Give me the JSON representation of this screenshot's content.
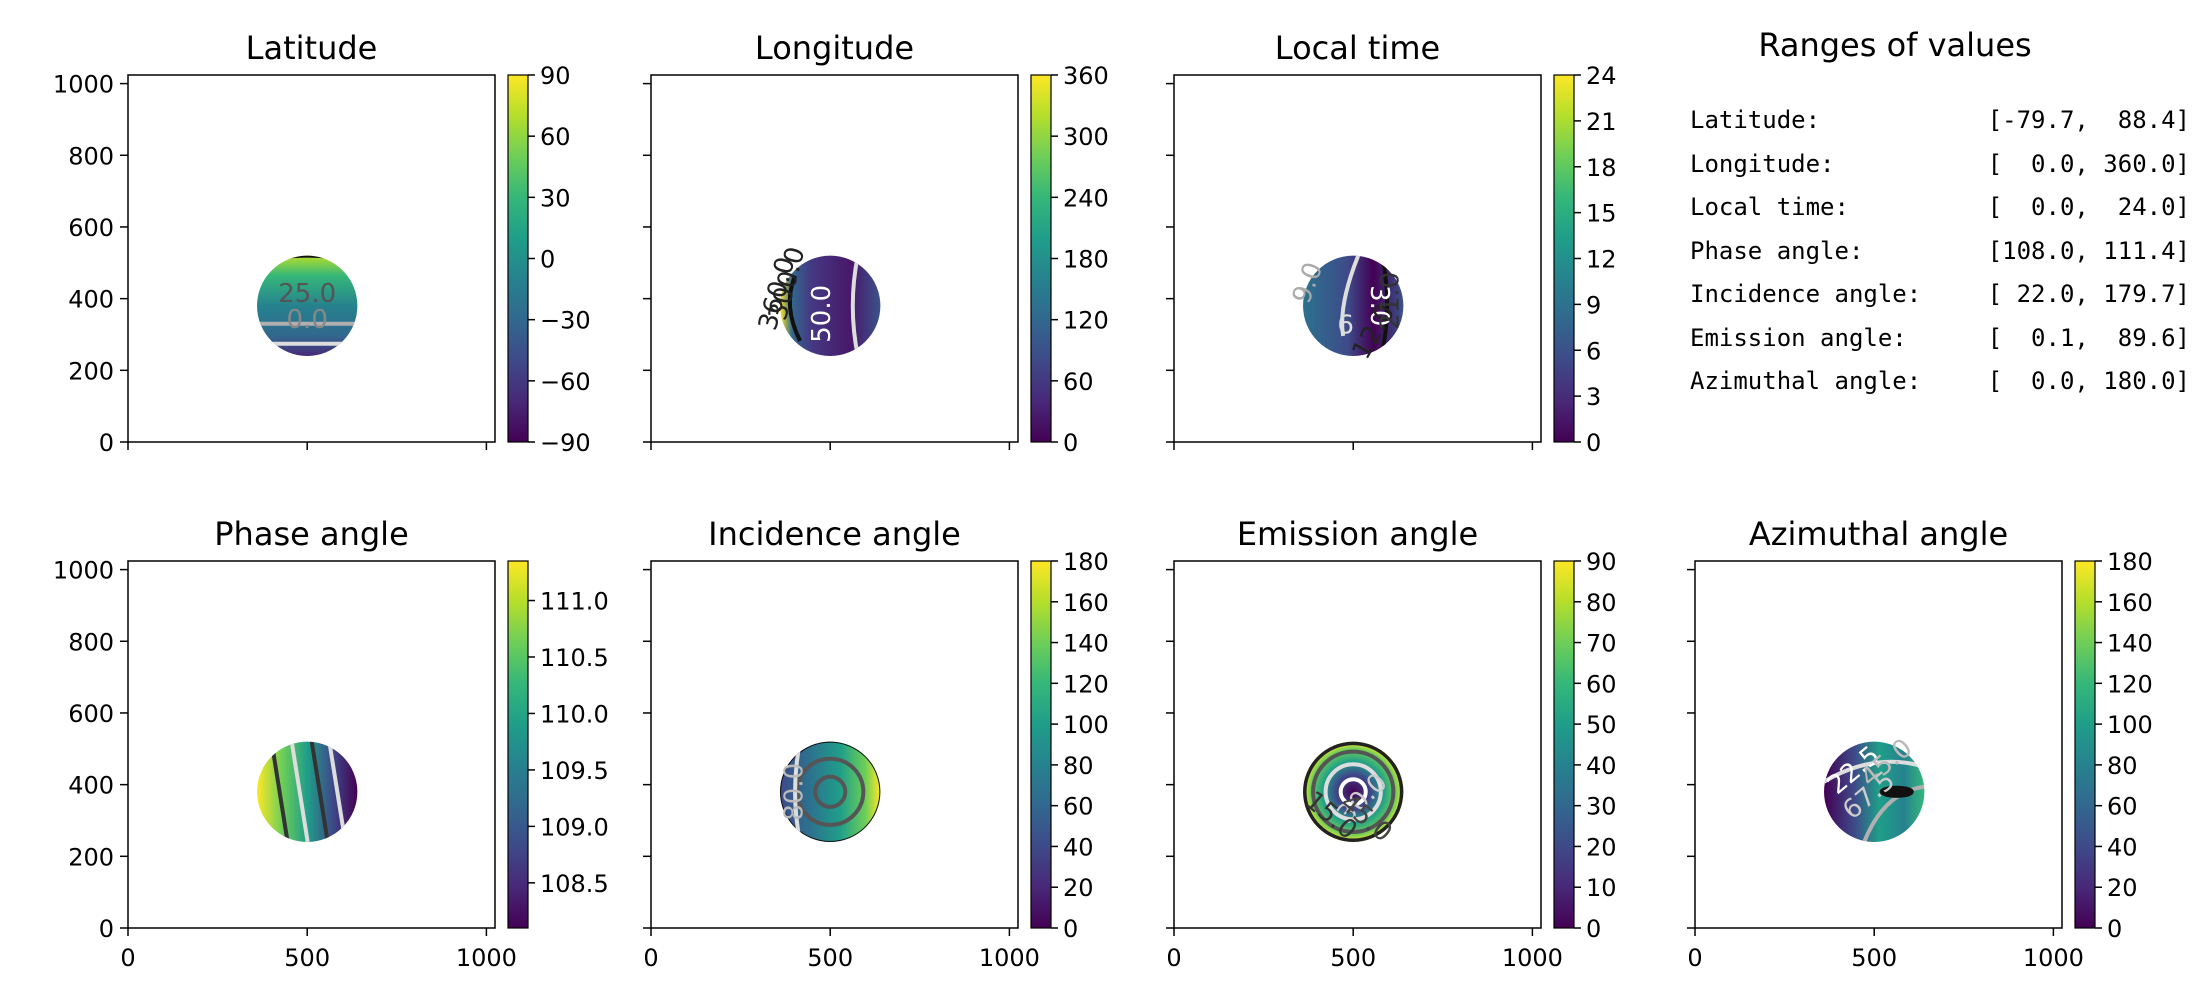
{
  "figure": {
    "axes": [
      {
        "key": "latitude",
        "title": "Latitude",
        "cb_min": -90,
        "cb_max": 90,
        "cb_ticks": [
          -90,
          -60,
          -30,
          0,
          30,
          60,
          90
        ],
        "cb_labels": [
          "−90",
          "−60",
          "−30",
          "0",
          "30",
          "60",
          "90"
        ],
        "contour_labels": [
          "25.0",
          "0.0"
        ]
      },
      {
        "key": "longitude",
        "title": "Longitude",
        "cb_min": 0,
        "cb_max": 360,
        "cb_ticks": [
          0,
          60,
          120,
          180,
          240,
          300,
          360
        ],
        "cb_labels": [
          "0",
          "60",
          "120",
          "180",
          "240",
          "300",
          "360"
        ],
        "contour_labels": [
          "50.0",
          "360.0",
          "300.0"
        ]
      },
      {
        "key": "local_time",
        "title": "Local time",
        "cb_min": 0,
        "cb_max": 24,
        "cb_ticks": [
          0,
          3,
          6,
          9,
          12,
          15,
          18,
          21,
          24
        ],
        "cb_labels": [
          "0",
          "3",
          "6",
          "9",
          "12",
          "15",
          "18",
          "21",
          "24"
        ],
        "contour_labels": [
          "9.0",
          "3.0",
          "6",
          "12.0",
          "21.0"
        ]
      },
      {
        "key": "phase_angle",
        "title": "Phase angle",
        "cb_min": 108.1,
        "cb_max": 111.35,
        "cb_ticks": [
          108.5,
          109.0,
          109.5,
          110.0,
          110.5,
          111.0
        ],
        "cb_labels": [
          "108.5",
          "109.0",
          "109.5",
          "110.0",
          "110.5",
          "111.0"
        ],
        "contour_labels": []
      },
      {
        "key": "incidence_angle",
        "title": "Incidence angle",
        "cb_min": 0,
        "cb_max": 180,
        "cb_ticks": [
          0,
          20,
          40,
          60,
          80,
          100,
          120,
          140,
          160,
          180
        ],
        "cb_labels": [
          "0",
          "20",
          "40",
          "60",
          "80",
          "100",
          "120",
          "140",
          "160",
          "180"
        ],
        "contour_labels": [
          "80.0"
        ]
      },
      {
        "key": "emission_angle",
        "title": "Emission angle",
        "cb_min": 0,
        "cb_max": 90,
        "cb_ticks": [
          0,
          10,
          20,
          30,
          40,
          50,
          60,
          70,
          80,
          90
        ],
        "cb_labels": [
          "0",
          "10",
          "20",
          "30",
          "40",
          "50",
          "60",
          "70",
          "80",
          "90"
        ],
        "contour_labels": [
          "30.0",
          "15.0",
          "45.0"
        ]
      },
      {
        "key": "azimuthal_angle",
        "title": "Azimuthal angle",
        "cb_min": 0,
        "cb_max": 180,
        "cb_ticks": [
          0,
          20,
          40,
          60,
          80,
          100,
          120,
          140,
          160,
          180
        ],
        "cb_labels": [
          "0",
          "20",
          "40",
          "60",
          "80",
          "100",
          "120",
          "140",
          "160",
          "180"
        ],
        "contour_labels": [
          "22.5",
          "67.5",
          "45.0"
        ]
      }
    ],
    "x_ticks": [
      0,
      500,
      1000
    ],
    "y_ticks": [
      0,
      200,
      400,
      600,
      800,
      1000
    ],
    "x_tick_labels": [
      "0",
      "500",
      "1000"
    ],
    "y_tick_labels": [
      "0",
      "200",
      "400",
      "600",
      "800",
      "1000"
    ]
  },
  "chart_data": {
    "type": "heatmap",
    "title": "Ranges of values",
    "xlim": [
      0,
      1024
    ],
    "ylim": [
      0,
      1024
    ],
    "disk": {
      "center_x": 500,
      "center_y": 380,
      "radius": 140
    },
    "colormap": "viridis",
    "ranges": [
      {
        "label": "Latitude:",
        "value": "[-79.7,  88.4]",
        "min": -79.7,
        "max": 88.4
      },
      {
        "label": "Longitude:",
        "value": "[  0.0, 360.0]",
        "min": 0.0,
        "max": 360.0
      },
      {
        "label": "Local time:",
        "value": "[  0.0,  24.0]",
        "min": 0.0,
        "max": 24.0
      },
      {
        "label": "Phase angle:",
        "value": "[108.0, 111.4]",
        "min": 108.0,
        "max": 111.4
      },
      {
        "label": "Incidence angle:",
        "value": "[ 22.0, 179.7]",
        "min": 22.0,
        "max": 179.7
      },
      {
        "label": "Emission angle:",
        "value": "[  0.1,  89.6]",
        "min": 0.1,
        "max": 89.6
      },
      {
        "label": "Azimuthal angle:",
        "value": "[  0.0, 180.0]",
        "min": 0.0,
        "max": 180.0
      }
    ]
  }
}
